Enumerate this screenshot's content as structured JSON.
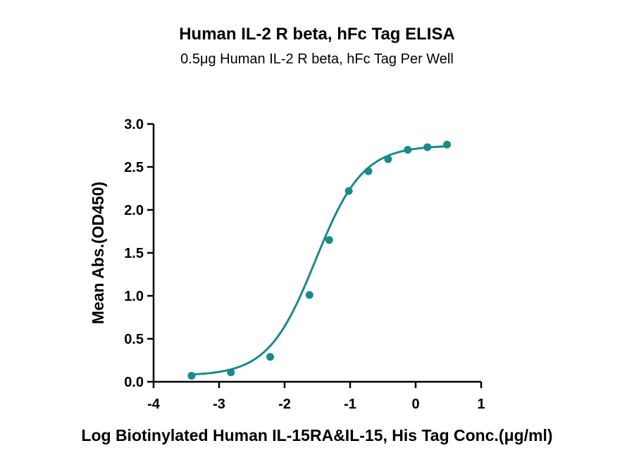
{
  "chart_data": {
    "type": "scatter",
    "title": "Human IL-2 R beta, hFc Tag ELISA",
    "subtitle": "0.5μg Human IL-2 R beta, hFc Tag Per Well",
    "xlabel": "Log Biotinylated Human IL-15RA&IL-15, His Tag Conc.(μg/ml)",
    "ylabel": "Mean Abs.(OD450)",
    "xlim": [
      -4,
      1
    ],
    "ylim": [
      0,
      3
    ],
    "xticks": [
      -4,
      -3,
      -2,
      -1,
      0,
      1
    ],
    "yticks": [
      0.0,
      0.5,
      1.0,
      1.5,
      2.0,
      2.5,
      3.0
    ],
    "xtick_labels": [
      "-4",
      "-3",
      "-2",
      "-1",
      "0",
      "1"
    ],
    "ytick_labels": [
      "0.0",
      "0.5",
      "1.0",
      "1.5",
      "2.0",
      "2.5",
      "3.0"
    ],
    "grid": false,
    "color": "#1a8a8a",
    "series": [
      {
        "points": [
          {
            "x": -3.42,
            "y": 0.07
          },
          {
            "x": -2.82,
            "y": 0.11
          },
          {
            "x": -2.22,
            "y": 0.29
          },
          {
            "x": -1.62,
            "y": 1.01
          },
          {
            "x": -1.32,
            "y": 1.65
          },
          {
            "x": -1.02,
            "y": 2.22
          },
          {
            "x": -0.72,
            "y": 2.45
          },
          {
            "x": -0.42,
            "y": 2.59
          },
          {
            "x": -0.12,
            "y": 2.7
          },
          {
            "x": 0.18,
            "y": 2.73
          },
          {
            "x": 0.48,
            "y": 2.76
          }
        ],
        "fit": {
          "type": "4PL",
          "bottom": 0.07,
          "top": 2.75,
          "logEC50": -1.53,
          "hill": 1.2
        }
      }
    ]
  }
}
